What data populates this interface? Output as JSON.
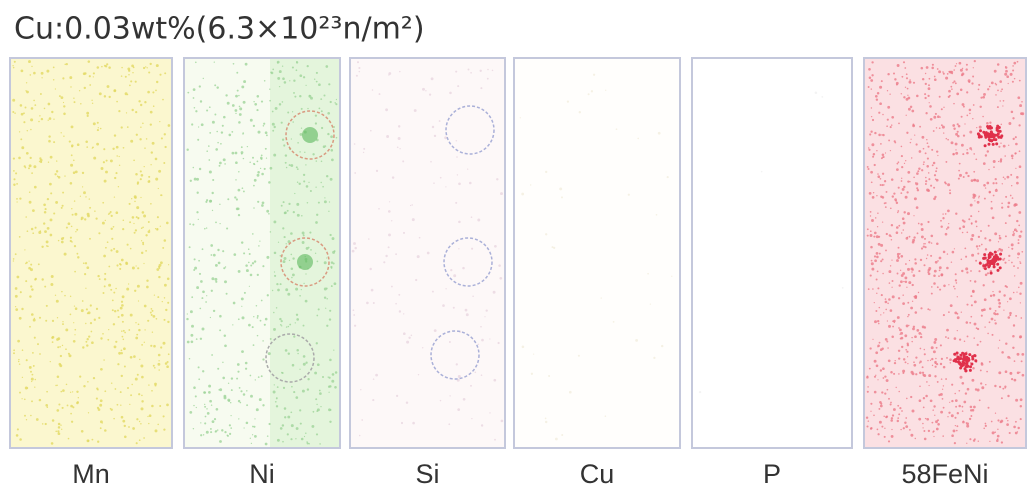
{
  "title": "Cu:0.03wt%(6.3×10²³n/m²)",
  "panels": [
    {
      "label": "Mn"
    },
    {
      "label": "Ni"
    },
    {
      "label": "Si"
    },
    {
      "label": "Cu"
    },
    {
      "label": "P"
    },
    {
      "label": "58FeNi"
    }
  ]
}
